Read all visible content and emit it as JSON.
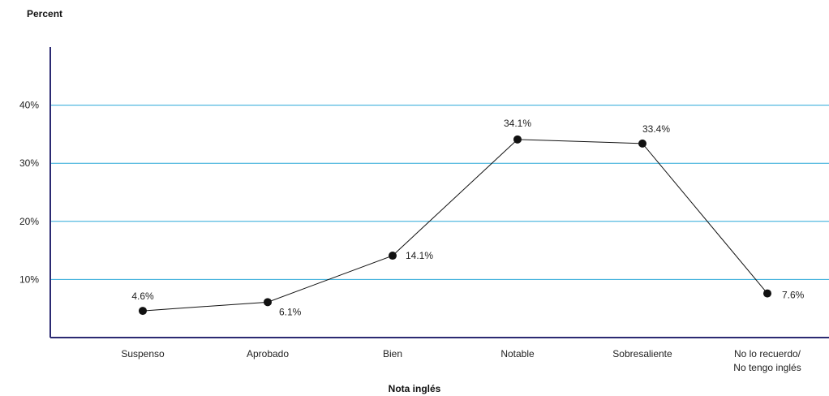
{
  "chart_data": {
    "type": "line",
    "ylabel": "Percent",
    "xlabel": "Nota inglés",
    "categories": [
      "Suspenso",
      "Aprobado",
      "Bien",
      "Notable",
      "Sobresaliente",
      "No lo recuerdo/ No tengo inglés"
    ],
    "category_lines": [
      [
        "Suspenso"
      ],
      [
        "Aprobado"
      ],
      [
        "Bien"
      ],
      [
        "Notable"
      ],
      [
        "Sobresaliente"
      ],
      [
        "No lo recuerdo/",
        "No tengo inglés"
      ]
    ],
    "values": [
      4.6,
      6.1,
      14.1,
      34.1,
      33.4,
      7.6
    ],
    "data_labels": [
      "4.6%",
      "6.1%",
      "14.1%",
      "34.1%",
      "33.4%",
      "7.6%"
    ],
    "yticks": [
      10,
      20,
      30,
      40
    ],
    "ytick_labels": [
      "10%",
      "20%",
      "30%",
      "40%"
    ],
    "ylim": [
      0,
      50
    ],
    "grid": true,
    "colors": {
      "axis": "#2b2a72",
      "grid": "#2aa8d8",
      "line": "#111111",
      "marker": "#111111"
    }
  }
}
